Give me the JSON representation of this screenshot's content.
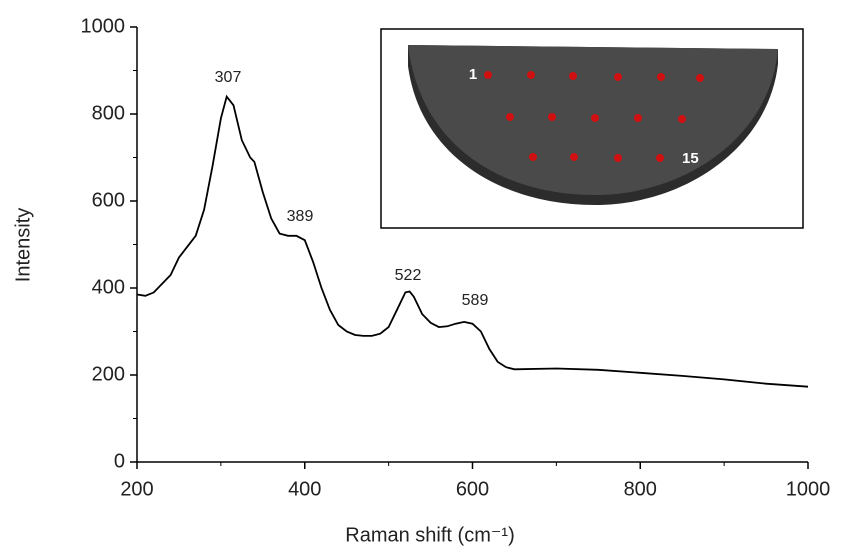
{
  "chart_data": {
    "type": "line",
    "xlabel": "Raman shift (cm⁻¹)",
    "ylabel": "Intensity",
    "color": "#000000",
    "x": [
      200,
      210,
      220,
      240,
      250,
      260,
      270,
      280,
      290,
      300,
      307,
      315,
      325,
      335,
      340,
      350,
      360,
      370,
      380,
      390,
      400,
      410,
      420,
      430,
      440,
      450,
      460,
      470,
      480,
      490,
      500,
      510,
      520,
      525,
      530,
      540,
      550,
      560,
      570,
      580,
      590,
      600,
      610,
      620,
      630,
      640,
      650,
      700,
      750,
      800,
      850,
      900,
      950,
      1000
    ],
    "values": [
      385,
      382,
      390,
      430,
      470,
      495,
      520,
      580,
      680,
      790,
      840,
      820,
      740,
      700,
      690,
      620,
      560,
      525,
      520,
      520,
      510,
      460,
      400,
      350,
      315,
      300,
      292,
      290,
      290,
      295,
      310,
      350,
      390,
      392,
      380,
      340,
      320,
      310,
      312,
      318,
      322,
      318,
      300,
      260,
      230,
      218,
      213,
      215,
      212,
      205,
      198,
      190,
      180,
      173
    ],
    "xlim": [
      200,
      1000
    ],
    "ylim": [
      0,
      1000
    ],
    "xticks": [
      200,
      400,
      600,
      800,
      1000
    ],
    "yticks": [
      0,
      200,
      400,
      600,
      800,
      1000
    ],
    "xminor_ticks": [
      300,
      500,
      700,
      900
    ],
    "yminor_ticks": [
      100,
      300,
      500,
      700,
      900
    ],
    "annotations": [
      "307",
      "389",
      "522",
      "589"
    ],
    "inset": {
      "labels": [
        "1",
        "15"
      ]
    }
  }
}
